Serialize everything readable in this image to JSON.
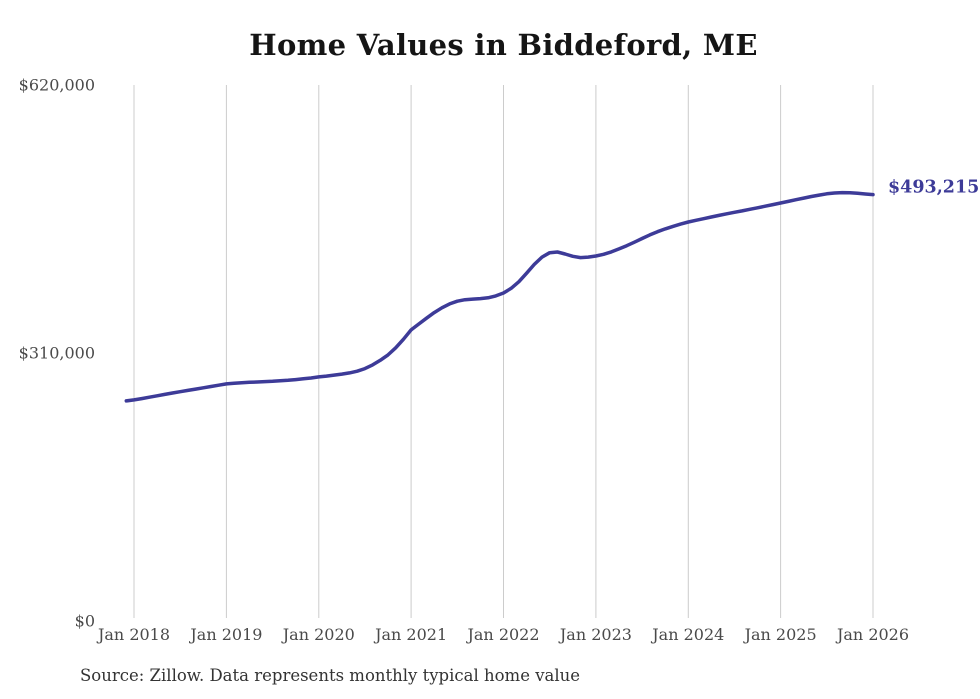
{
  "chart": {
    "title": "Home Values in Biddeford, ME",
    "source": "Source: Zillow. Data represents monthly typical home value"
  },
  "chart_data": {
    "type": "line",
    "title": "Home Values in Biddeford, ME",
    "series_name": "Monthly typical home value",
    "x_start_label": "Dec 2017",
    "x_end_label": "Jan 2026",
    "start_month_index": -1,
    "months_span": 96,
    "x_ticks": [
      {
        "label": "Jan 2018",
        "month": 0
      },
      {
        "label": "Jan 2019",
        "month": 12
      },
      {
        "label": "Jan 2020",
        "month": 24
      },
      {
        "label": "Jan 2021",
        "month": 36
      },
      {
        "label": "Jan 2022",
        "month": 48
      },
      {
        "label": "Jan 2023",
        "month": 60
      },
      {
        "label": "Jan 2024",
        "month": 72
      },
      {
        "label": "Jan 2025",
        "month": 84
      },
      {
        "label": "Jan 2026",
        "month": 96
      }
    ],
    "y_ticks": [
      {
        "label": "$0",
        "value": 0
      },
      {
        "label": "$310,000",
        "value": 310000
      },
      {
        "label": "$620,000",
        "value": 620000
      }
    ],
    "ylim": [
      0,
      620000
    ],
    "grid": "vertical-only",
    "legend": "none",
    "values": [
      254600,
      255700,
      257300,
      258900,
      260500,
      262100,
      263700,
      265200,
      266700,
      268200,
      269700,
      271200,
      272700,
      274300,
      275000,
      275600,
      276100,
      276500,
      276900,
      277300,
      277800,
      278400,
      279200,
      280100,
      281100,
      282300,
      283300,
      284400,
      285600,
      287000,
      289000,
      292000,
      296200,
      301500,
      307800,
      316000,
      325800,
      336700,
      343500,
      350300,
      356700,
      362300,
      366800,
      369900,
      371600,
      372400,
      372900,
      373900,
      376100,
      379400,
      384800,
      392500,
      402300,
      412500,
      420900,
      426000,
      426800,
      424500,
      421800,
      420400,
      420900,
      422200,
      424200,
      427000,
      430400,
      434100,
      438200,
      442500,
      446600,
      450300,
      453500,
      456400,
      459100,
      461500,
      463500,
      465400,
      467300,
      469200,
      471000,
      472700,
      474400,
      476200,
      478000,
      479800,
      481600,
      483500,
      485400,
      487300,
      489200,
      491000,
      492700,
      494100,
      495100,
      495500,
      495300,
      494700,
      493900,
      493215
    ],
    "end_value": 493215,
    "end_label": "$493,215",
    "line_color": "#3d3b98",
    "gridline_color": "#cccccc",
    "tick_text_color": "#4a4a4a"
  }
}
